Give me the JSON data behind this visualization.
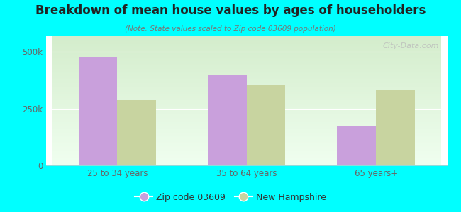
{
  "title": "Breakdown of mean house values by ages of householders",
  "subtitle": "(Note: State values scaled to Zip code 03609 population)",
  "categories": [
    "25 to 34 years",
    "35 to 64 years",
    "65 years+"
  ],
  "zip_values": [
    480000,
    400000,
    175000
  ],
  "state_values": [
    290000,
    355000,
    330000
  ],
  "zip_color": "#c9a0dc",
  "state_color": "#c8d4a0",
  "background_color": "#00ffff",
  "plot_bg_top": "#f0fff0",
  "plot_bg_bottom": "#d4edcc",
  "yticks": [
    0,
    250000,
    500000
  ],
  "ytick_labels": [
    "0",
    "250k",
    "500k"
  ],
  "ymax": 570000,
  "bar_width": 0.3,
  "legend_zip_label": "Zip code 03609",
  "legend_state_label": "New Hampshire",
  "watermark": "City-Data.com"
}
